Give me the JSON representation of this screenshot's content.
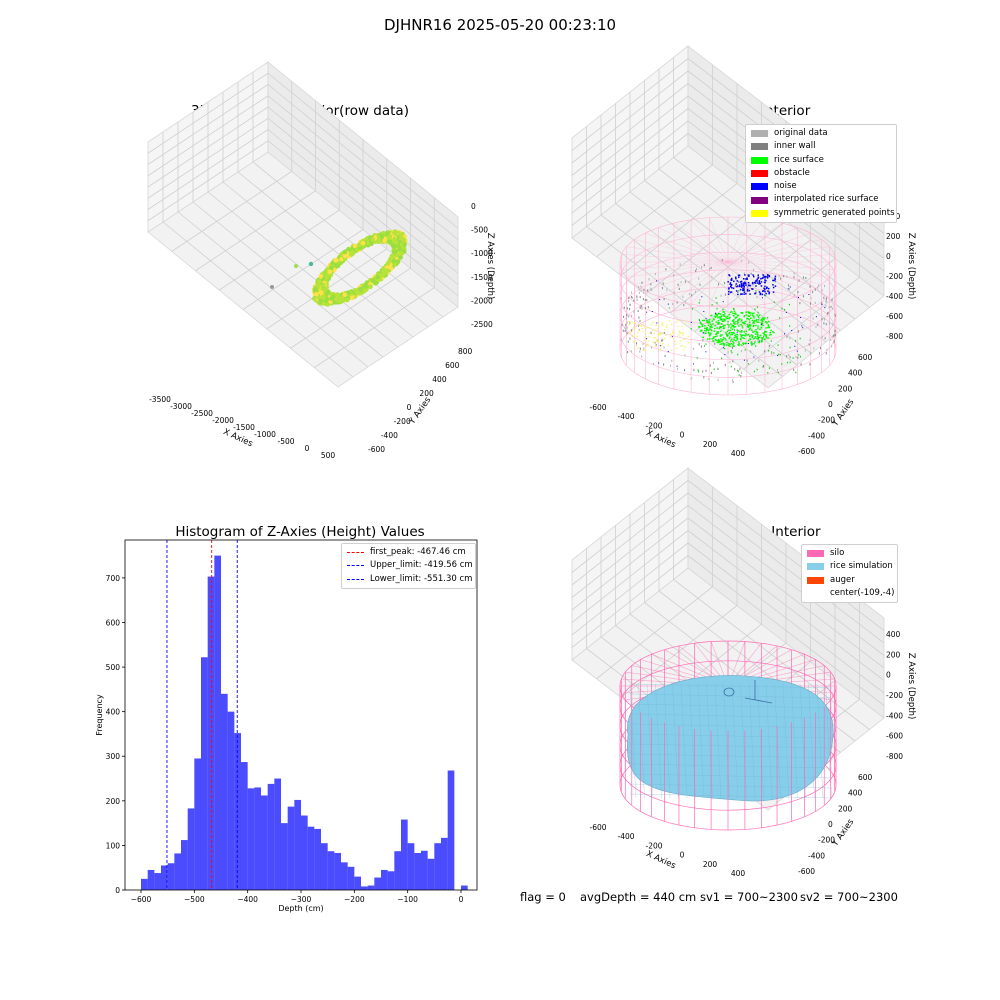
{
  "suptitle": "DJHNR16 2025-05-20 00:23:10",
  "footer": {
    "flag": "flag = 0",
    "avg_depth": "avgDepth = 440 cm",
    "sv1": "sv1 = 700~2300",
    "sv2": "sv2 = 700~2300"
  },
  "colors": {
    "silo": "#ff69b4",
    "rice_sim": "#87ceeb",
    "hist": "#0000ff"
  },
  "chart_data": [
    {
      "type": "scatter",
      "title": "3D Plot of Silo Interior(row data)",
      "xlabel": "X Axies",
      "ylabel": "Y Axies",
      "zlabel": "Z Axies (Depth)",
      "xticks": [
        "-3500",
        "-3000",
        "-2500",
        "-2000",
        "-1500",
        "-1000",
        "-500",
        "0",
        "500"
      ],
      "yticks": [
        "-600",
        "-400",
        "-200",
        "0",
        "200",
        "400",
        "600",
        "800"
      ],
      "zticks": [
        "0",
        "-500",
        "-1000",
        "-1500",
        "-2000",
        "-2500"
      ]
    },
    {
      "type": "scatter",
      "title": "3D classify of Silo Interior",
      "xlabel": "X Axies",
      "ylabel": "Y Axies",
      "zlabel": "Z Axies (Depth)",
      "xticks": [
        "-600",
        "-400",
        "-200",
        "0",
        "200",
        "400"
      ],
      "yticks": [
        "-600",
        "-400",
        "-200",
        "0",
        "200",
        "400",
        "600"
      ],
      "zticks": [
        "400",
        "200",
        "0",
        "-200",
        "-400",
        "-600",
        "-800"
      ],
      "legend": [
        {
          "label": "original data",
          "color": "#b0b0b0"
        },
        {
          "label": "inner wall",
          "color": "#808080"
        },
        {
          "label": "rice surface",
          "color": "#00ff00"
        },
        {
          "label": "obstacle",
          "color": "#ff0000"
        },
        {
          "label": "noise",
          "color": "#0000ff"
        },
        {
          "label": "interpolated rice surface",
          "color": "#800080"
        },
        {
          "label": "symmetric generated points",
          "color": "#ffff00"
        }
      ]
    },
    {
      "type": "bar",
      "title": "Histogram of Z-Axies (Height) Values",
      "xlabel": "Depth (cm)",
      "ylabel": "Frequency",
      "xlim": [
        -630,
        30
      ],
      "ylim": [
        0,
        785
      ],
      "xticks": [
        -600,
        -500,
        -400,
        -300,
        -200,
        -100,
        0
      ],
      "yticks": [
        0,
        100,
        200,
        300,
        400,
        500,
        600,
        700
      ],
      "bin_start": -600,
      "bin_width": 12.5,
      "values": [
        25,
        45,
        38,
        55,
        60,
        82,
        112,
        183,
        295,
        522,
        703,
        750,
        440,
        400,
        352,
        287,
        228,
        230,
        212,
        238,
        250,
        150,
        187,
        202,
        167,
        142,
        137,
        105,
        87,
        83,
        62,
        52,
        30,
        8,
        10,
        28,
        45,
        42,
        87,
        158,
        105,
        83,
        88,
        70,
        105,
        117,
        268,
        0,
        10
      ],
      "vlines": [
        {
          "label": "first_peak: -467.46 cm",
          "x": -467.46,
          "color": "#ff0000"
        },
        {
          "label": "Upper_limit: -419.56 cm",
          "x": -419.56,
          "color": "#0000ff"
        },
        {
          "label": "Lower_limit: -551.30 cm",
          "x": -551.3,
          "color": "#0000ff"
        }
      ]
    },
    {
      "type": "scatter",
      "title": "3D simulation of Silo Interior",
      "xlabel": "X Axies",
      "ylabel": "Y Axies",
      "zlabel": "Z Axies (Depth)",
      "xticks": [
        "-600",
        "-400",
        "-200",
        "0",
        "200",
        "400"
      ],
      "yticks": [
        "-600",
        "-400",
        "-200",
        "0",
        "200",
        "400",
        "600"
      ],
      "zticks": [
        "400",
        "200",
        "0",
        "-200",
        "-400",
        "-600",
        "-800"
      ],
      "legend": [
        {
          "label": "silo",
          "color": "#ff69b4"
        },
        {
          "label": "rice simulation",
          "color": "#87ceeb"
        },
        {
          "label": "auger",
          "color": "#ff4500"
        },
        {
          "label": "center(-109,-4)",
          "color": "none"
        }
      ]
    }
  ]
}
